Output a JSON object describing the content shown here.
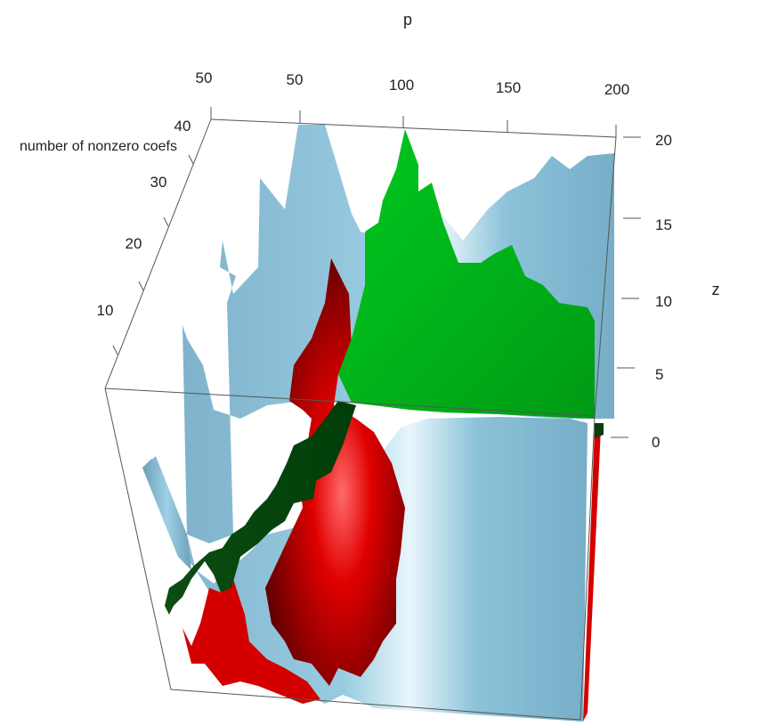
{
  "chart_data": {
    "type": "surface3d",
    "axes": {
      "x": {
        "label": "p",
        "ticks": [
          "50",
          "50",
          "100",
          "150",
          "200"
        ]
      },
      "y": {
        "label": "number of nonzero coefs",
        "ticks": [
          "10",
          "20",
          "30",
          "40"
        ]
      },
      "z": {
        "label": "z",
        "ticks": [
          "0",
          "5",
          "10",
          "15",
          "20"
        ],
        "range": [
          0,
          20
        ]
      }
    },
    "series": [
      {
        "color": "#87c0d8",
        "x": [
          50,
          75,
          100,
          125,
          150,
          175,
          200
        ],
        "ridge_z": [
          12,
          19,
          17,
          15,
          13,
          16,
          20
        ]
      },
      {
        "color": "#e00000",
        "x": [
          50,
          75,
          100,
          125,
          150
        ],
        "ridge_z": [
          3,
          10,
          16,
          7,
          2
        ]
      },
      {
        "color": "#00b020",
        "x": [
          90,
          100,
          110,
          125,
          150,
          175,
          200
        ],
        "ridge_z": [
          12,
          20,
          17,
          13,
          14,
          11,
          10
        ]
      }
    ],
    "grid": false,
    "legend": "none",
    "colors": {
      "blue_surface": "#87c0d8",
      "red_surface": "#e00000",
      "green_surface": "#00b020",
      "box": "#555555"
    }
  }
}
